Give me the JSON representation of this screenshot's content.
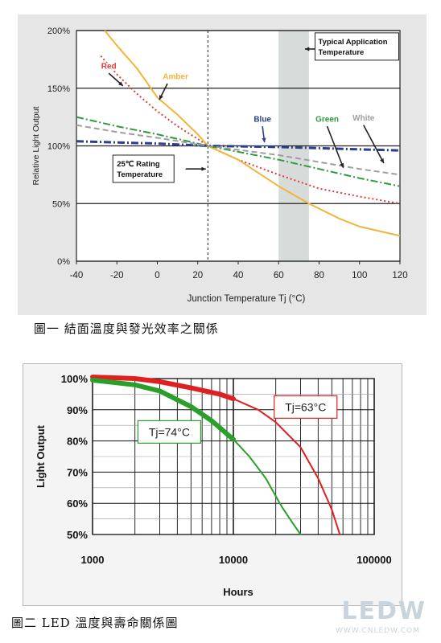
{
  "chart_data": [
    {
      "type": "line",
      "xlabel": "Junction Temperature Tj (°C)",
      "ylabel": "Relative Light Output",
      "xlim": [
        -40,
        120
      ],
      "ylim": [
        0,
        200
      ],
      "x_ticks": [
        -40,
        -20,
        0,
        20,
        40,
        60,
        80,
        100,
        120
      ],
      "y_ticks": [
        "0%",
        "50%",
        "100%",
        "150%",
        "200%"
      ],
      "y_tick_values": [
        0,
        50,
        100,
        150,
        200
      ],
      "grid": true,
      "reference_line_x": 25,
      "shaded_band_x": [
        60,
        75
      ],
      "series": [
        {
          "name": "Red",
          "color": "#e23a3a",
          "style": "dotted",
          "x": [
            -28,
            -20,
            -10,
            0,
            10,
            20,
            25,
            40,
            60,
            80,
            100,
            120
          ],
          "values": [
            178,
            162,
            145,
            130,
            117,
            106,
            100,
            88,
            75,
            63,
            56,
            50
          ]
        },
        {
          "name": "Amber",
          "color": "#f2b43a",
          "style": "solid",
          "x": [
            -26,
            -20,
            -10,
            0,
            10,
            20,
            25,
            40,
            60,
            75,
            90,
            100,
            120
          ],
          "values": [
            200,
            187,
            167,
            142,
            127,
            110,
            100,
            88,
            65,
            50,
            37,
            30,
            22
          ]
        },
        {
          "name": "Blue",
          "color": "#2a3f8f",
          "style": "dashdot",
          "x": [
            -40,
            0,
            25,
            60,
            80,
            100,
            120
          ],
          "values": [
            104,
            102,
            100,
            99,
            98,
            97,
            96
          ]
        },
        {
          "name": "Green",
          "color": "#2f9a3a",
          "style": "dashdot",
          "x": [
            -40,
            -20,
            0,
            25,
            60,
            80,
            100,
            120
          ],
          "values": [
            125,
            117,
            110,
            100,
            88,
            80,
            72,
            65
          ]
        },
        {
          "name": "White",
          "color": "#9e9e9e",
          "style": "dashed",
          "x": [
            -40,
            -20,
            0,
            25,
            60,
            80,
            100,
            120
          ],
          "values": [
            118,
            112,
            107,
            100,
            92,
            86,
            80,
            75
          ]
        }
      ],
      "annotations": {
        "typical_app": "Typical Application Temperature",
        "rating": "25℃  Rating Temperature"
      }
    },
    {
      "type": "line",
      "xlabel": "Hours",
      "ylabel": "Light Output",
      "x_scale": "log",
      "xlim": [
        1000,
        100000
      ],
      "ylim": [
        50,
        100
      ],
      "x_ticks": [
        "1000",
        "10000",
        "100000"
      ],
      "y_ticks": [
        "100%",
        "90%",
        "80%",
        "70%",
        "60%",
        "50%"
      ],
      "y_tick_values": [
        100,
        90,
        80,
        70,
        60,
        50
      ],
      "grid": true,
      "series": [
        {
          "name": "Tj=63°C",
          "color": "#e02020",
          "x": [
            1000,
            2000,
            3000,
            5000,
            8000,
            10000,
            15000,
            20000,
            30000,
            40000,
            50000,
            57000
          ],
          "values": [
            100.5,
            100,
            99,
            97,
            95,
            93.5,
            90,
            86,
            78,
            68,
            58,
            50
          ]
        },
        {
          "name": "Tj=74°C",
          "color": "#2aa02a",
          "x": [
            1000,
            2000,
            3000,
            5000,
            7000,
            10000,
            13000,
            17000,
            22000,
            27000,
            30000
          ],
          "values": [
            99.5,
            98,
            96,
            91,
            86.5,
            80.5,
            75,
            68,
            59,
            53,
            50
          ]
        }
      ]
    }
  ],
  "captions": {
    "fig1": "圖一 結面溫度與發光效率之關係",
    "fig2": "圖二 LED 溫度與壽命關係圖"
  },
  "watermark": {
    "logo": "LEDW",
    "url": "WWW.CNLEDW.COM"
  }
}
